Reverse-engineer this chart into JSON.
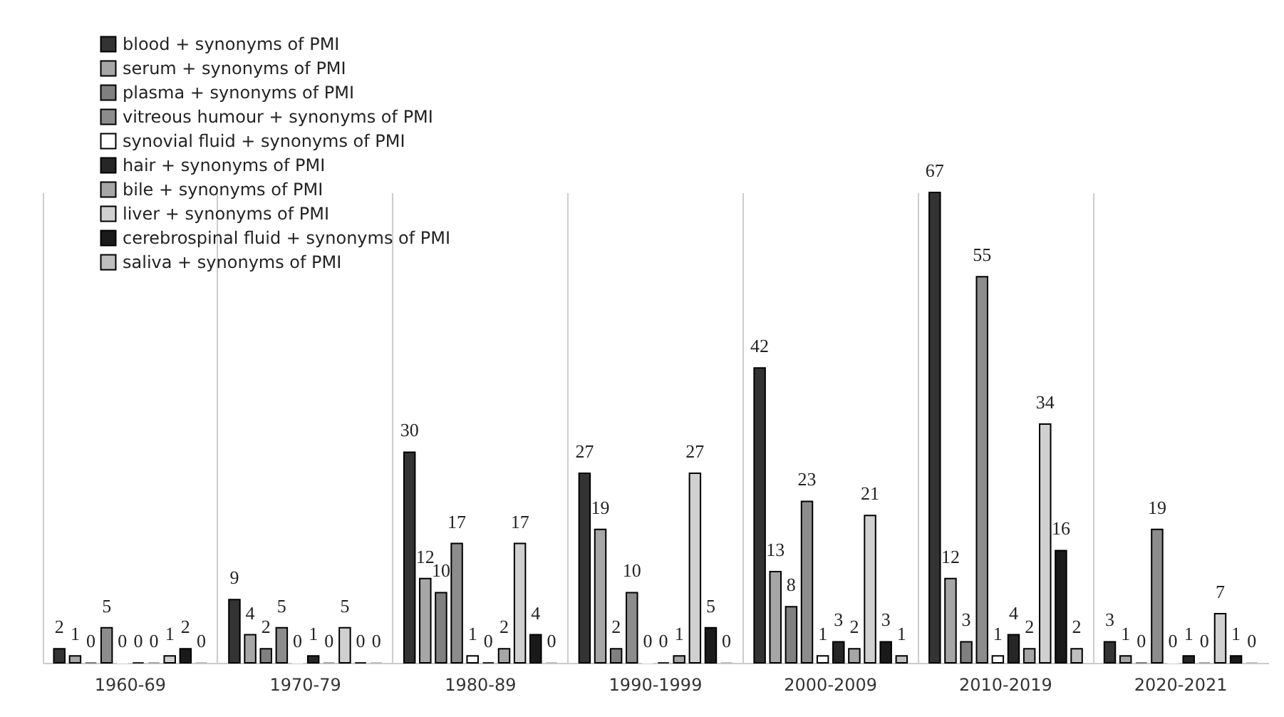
{
  "chart_data": {
    "type": "bar",
    "categories": [
      "1960-69",
      "1970-79",
      "1980-89",
      "1990-1999",
      "2000-2009",
      "2010-2019",
      "2020-2021"
    ],
    "series": [
      {
        "name": "blood + synonyms of PMI",
        "color": "#333333",
        "values": [
          2,
          9,
          30,
          27,
          42,
          67,
          3
        ]
      },
      {
        "name": "serum + synonyms of PMI",
        "color": "#a6a6a6",
        "values": [
          1,
          4,
          12,
          19,
          13,
          12,
          1
        ]
      },
      {
        "name": "plasma + synonyms of PMI",
        "color": "#808080",
        "values": [
          0,
          2,
          10,
          2,
          8,
          3,
          0
        ]
      },
      {
        "name": "vitreous humour + synonyms of PMI",
        "color": "#8c8c8c",
        "values": [
          5,
          5,
          17,
          10,
          23,
          55,
          19
        ]
      },
      {
        "name": "synovial fluid + synonyms of PMI",
        "color": "#ffffff",
        "values": [
          0,
          0,
          1,
          0,
          1,
          1,
          0
        ]
      },
      {
        "name": "hair + synonyms of PMI",
        "color": "#262626",
        "values": [
          0,
          1,
          0,
          0,
          3,
          4,
          1
        ]
      },
      {
        "name": "bile + synonyms of PMI",
        "color": "#a6a6a6",
        "values": [
          0,
          0,
          2,
          1,
          2,
          2,
          0
        ]
      },
      {
        "name": "liver + synonyms of PMI",
        "color": "#d0d0d0",
        "values": [
          1,
          5,
          17,
          27,
          21,
          34,
          7
        ]
      },
      {
        "name": "cerebrospinal fluid + synonyms of PMI",
        "color": "#1a1a1a",
        "values": [
          2,
          0,
          4,
          5,
          3,
          16,
          1
        ]
      },
      {
        "name": "saliva + synonyms of PMI",
        "color": "#bfbfbf",
        "values": [
          0,
          0,
          0,
          0,
          1,
          2,
          0
        ]
      }
    ],
    "data_labels": true,
    "grid": "x",
    "legend": "top left"
  }
}
